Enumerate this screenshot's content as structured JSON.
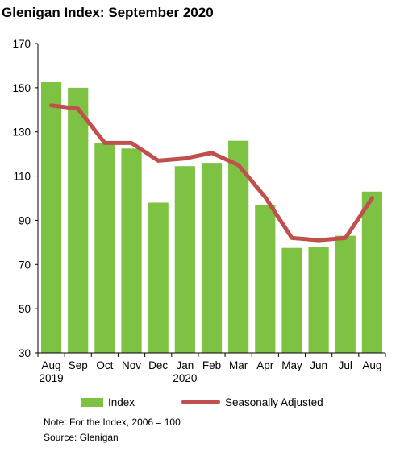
{
  "title": "Glenigan Index: September 2020",
  "chart_data": {
    "type": "bar",
    "categories": [
      "Aug\n2019",
      "Sep",
      "Oct",
      "Nov",
      "Dec",
      "Jan\n2020",
      "Feb",
      "Mar",
      "Apr",
      "May",
      "Jun",
      "Jul",
      "Aug"
    ],
    "series": [
      {
        "name": "Index",
        "type": "bar",
        "color": "#7dc242",
        "values": [
          152.5,
          150,
          125,
          122.5,
          98,
          114.5,
          116,
          126,
          97,
          77.5,
          78,
          83,
          103
        ]
      },
      {
        "name": "Seasonally Adjusted",
        "type": "line",
        "color": "#c0504d",
        "values": [
          142,
          140.5,
          125,
          125,
          117,
          118,
          120.5,
          115,
          100.5,
          82,
          81,
          82,
          100
        ]
      }
    ],
    "ylim": [
      30,
      170
    ],
    "yticks": [
      30,
      50,
      70,
      90,
      110,
      130,
      150,
      170
    ],
    "grid": false,
    "legend": "bottom"
  },
  "notes": [
    "Note: For the Index, 2006 = 100",
    "Source: Glenigan"
  ]
}
